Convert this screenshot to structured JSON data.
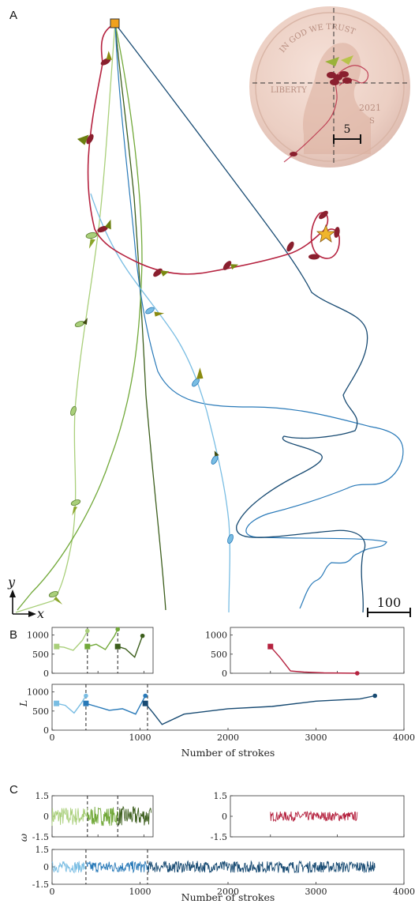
{
  "panel_labels": {
    "a": "A",
    "b": "B",
    "c": "C"
  },
  "panel_a": {
    "scale_bar": "100",
    "inset_scale_bar": "5",
    "axis_x": "x",
    "axis_y": "y",
    "coin": {
      "motto": "IN GOD WE TRUST",
      "left_word": "LIBERTY",
      "year": "2021",
      "mint": "S"
    }
  },
  "colors": {
    "light_green": "#a9cf7a",
    "mid_green": "#72a93a",
    "dark_green": "#3c5e1c",
    "red": "#b5223f",
    "light_blue": "#79bde3",
    "mid_blue": "#2879b8",
    "dark_blue": "#174a72",
    "start_marker": "#f0a11c"
  },
  "chart_data": [
    {
      "type": "line",
      "panel": "B",
      "ylabel": "L",
      "xlabel": "",
      "xlim": [
        0,
        1100
      ],
      "ylim": [
        0,
        1200
      ],
      "yticks": [
        "0",
        "500",
        "1000"
      ],
      "series": [
        {
          "x": [
            50,
            130,
            230,
            330,
            385
          ],
          "y": [
            700,
            680,
            600,
            860,
            1110
          ]
        },
        {
          "x": [
            385,
            480,
            580,
            680,
            715
          ],
          "y": [
            700,
            760,
            620,
            980,
            1150
          ]
        },
        {
          "x": [
            715,
            800,
            900,
            985
          ],
          "y": [
            700,
            640,
            420,
            980
          ]
        }
      ]
    },
    {
      "type": "line",
      "panel": "B",
      "xlim": [
        1400,
        4000
      ],
      "ylim": [
        0,
        1200
      ],
      "yticks": [
        "0",
        "500",
        "1000"
      ],
      "series": [
        {
          "x": [
            2000,
            2150,
            2300,
            2500,
            2800,
            3300
          ],
          "y": [
            700,
            400,
            60,
            30,
            10,
            0
          ]
        }
      ]
    },
    {
      "type": "line",
      "panel": "B",
      "xlabel": "Number of strokes",
      "xlim": [
        0,
        4000
      ],
      "ylim": [
        0,
        1200
      ],
      "xticks": [
        "0",
        "1000",
        "2000",
        "3000",
        "4000"
      ],
      "yticks": [
        "0",
        "500",
        "1000"
      ],
      "series": [
        {
          "x": [
            50,
            150,
            250,
            330,
            385
          ],
          "y": [
            700,
            650,
            450,
            700,
            900
          ]
        },
        {
          "x": [
            385,
            500,
            650,
            800,
            950,
            1060
          ],
          "y": [
            700,
            620,
            520,
            560,
            420,
            900
          ]
        },
        {
          "x": [
            1060,
            1150,
            1250,
            1500,
            2000,
            2500,
            3000,
            3500,
            3670
          ],
          "y": [
            700,
            450,
            150,
            420,
            560,
            620,
            760,
            820,
            900
          ]
        }
      ]
    },
    {
      "type": "line",
      "panel": "C",
      "ylabel": "ω",
      "xlim": [
        0,
        1100
      ],
      "ylim": [
        -1.5,
        1.5
      ],
      "yticks": [
        "-1.5",
        "0",
        "1.5"
      ]
    },
    {
      "type": "line",
      "panel": "C",
      "xlim": [
        1400,
        4000
      ],
      "ylim": [
        -1.5,
        1.5
      ],
      "yticks": [
        "-1.5",
        "0",
        "1.5"
      ],
      "series": [
        {
          "x_range": [
            2000,
            3300
          ],
          "amplitude": 0.35
        }
      ]
    },
    {
      "type": "line",
      "panel": "C",
      "xlabel": "Number of strokes",
      "xlim": [
        0,
        4000
      ],
      "ylim": [
        -1.5,
        1.5
      ],
      "xticks": [
        "0",
        "1000",
        "2000",
        "3000",
        "4000"
      ],
      "yticks": [
        "-1.5",
        "0",
        "1.5"
      ],
      "series": [
        {
          "x_range": [
            0,
            3670
          ],
          "amplitude": 0.5
        }
      ]
    }
  ]
}
